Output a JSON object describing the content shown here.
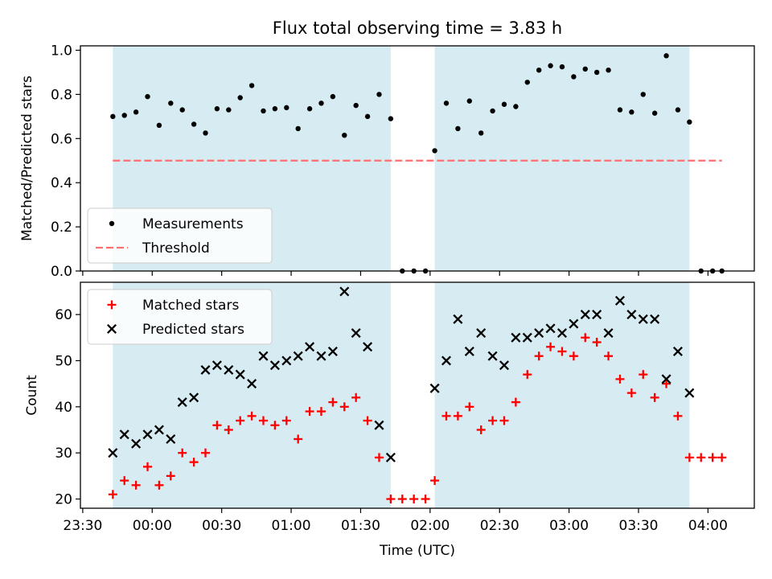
{
  "figure_title": "Flux total observing time = 3.83 h",
  "colors": {
    "shade": "#add8e6",
    "measurement": "#000000",
    "threshold": "#ff6f6f",
    "matched": "#ff0000",
    "predicted": "#000000"
  },
  "chart_data": [
    {
      "type": "scatter",
      "title": "Flux total observing time = 3.83 h",
      "xlabel": "",
      "ylabel": "Matched/Predicted stars",
      "xlim": [
        "23:29",
        "04:20"
      ],
      "ylim": [
        0.0,
        1.02
      ],
      "yticks": [
        "0.0",
        "0.2",
        "0.4",
        "0.6",
        "0.8",
        "1.0"
      ],
      "shaded_intervals": [
        [
          "23:43",
          "01:43"
        ],
        [
          "02:02",
          "03:52"
        ]
      ],
      "legend": {
        "position": "lower-left",
        "entries": [
          "Measurements",
          "Threshold"
        ]
      },
      "threshold": {
        "name": "Threshold",
        "value": 0.5,
        "x_range": [
          "23:43",
          "04:06"
        ]
      },
      "series": [
        {
          "name": "Measurements",
          "marker": "dot",
          "points": [
            [
              "23:43",
              0.7
            ],
            [
              "23:48",
              0.705
            ],
            [
              "23:53",
              0.72
            ],
            [
              "23:58",
              0.79
            ],
            [
              "00:03",
              0.66
            ],
            [
              "00:08",
              0.76
            ],
            [
              "00:13",
              0.73
            ],
            [
              "00:18",
              0.665
            ],
            [
              "00:23",
              0.625
            ],
            [
              "00:28",
              0.735
            ],
            [
              "00:33",
              0.73
            ],
            [
              "00:38",
              0.785
            ],
            [
              "00:43",
              0.84
            ],
            [
              "00:48",
              0.725
            ],
            [
              "00:53",
              0.735
            ],
            [
              "00:58",
              0.74
            ],
            [
              "01:03",
              0.645
            ],
            [
              "01:08",
              0.735
            ],
            [
              "01:13",
              0.76
            ],
            [
              "01:18",
              0.79
            ],
            [
              "01:23",
              0.615
            ],
            [
              "01:28",
              0.75
            ],
            [
              "01:33",
              0.7
            ],
            [
              "01:38",
              0.8
            ],
            [
              "01:43",
              0.69
            ],
            [
              "01:48",
              0.0
            ],
            [
              "01:53",
              0.0
            ],
            [
              "01:58",
              0.0
            ],
            [
              "02:02",
              0.545
            ],
            [
              "02:07",
              0.76
            ],
            [
              "02:12",
              0.645
            ],
            [
              "02:17",
              0.77
            ],
            [
              "02:22",
              0.625
            ],
            [
              "02:27",
              0.725
            ],
            [
              "02:32",
              0.755
            ],
            [
              "02:37",
              0.745
            ],
            [
              "02:42",
              0.855
            ],
            [
              "02:47",
              0.91
            ],
            [
              "02:52",
              0.93
            ],
            [
              "02:57",
              0.925
            ],
            [
              "03:02",
              0.88
            ],
            [
              "03:07",
              0.915
            ],
            [
              "03:12",
              0.9
            ],
            [
              "03:17",
              0.91
            ],
            [
              "03:22",
              0.73
            ],
            [
              "03:27",
              0.72
            ],
            [
              "03:32",
              0.8
            ],
            [
              "03:37",
              0.715
            ],
            [
              "03:42",
              0.975
            ],
            [
              "03:47",
              0.73
            ],
            [
              "03:52",
              0.675
            ],
            [
              "03:57",
              0.0
            ],
            [
              "04:02",
              0.0
            ],
            [
              "04:06",
              0.0
            ]
          ]
        }
      ]
    },
    {
      "type": "scatter",
      "title": "",
      "xlabel": "Time (UTC)",
      "ylabel": "Count",
      "xlim": [
        "23:29",
        "04:20"
      ],
      "ylim": [
        18,
        67
      ],
      "xticks": [
        "23:30",
        "00:00",
        "00:30",
        "01:00",
        "01:30",
        "02:00",
        "02:30",
        "03:00",
        "03:30",
        "04:00"
      ],
      "yticks": [
        "20",
        "30",
        "40",
        "50",
        "60"
      ],
      "shaded_intervals": [
        [
          "23:43",
          "01:43"
        ],
        [
          "02:02",
          "03:52"
        ]
      ],
      "legend": {
        "position": "upper-left",
        "entries": [
          "Matched stars",
          "Predicted stars"
        ]
      },
      "series": [
        {
          "name": "Matched stars",
          "marker": "plus",
          "points": [
            [
              "23:43",
              21
            ],
            [
              "23:48",
              24
            ],
            [
              "23:53",
              23
            ],
            [
              "23:58",
              27
            ],
            [
              "00:03",
              23
            ],
            [
              "00:08",
              25
            ],
            [
              "00:13",
              30
            ],
            [
              "00:18",
              28
            ],
            [
              "00:23",
              30
            ],
            [
              "00:28",
              36
            ],
            [
              "00:33",
              35
            ],
            [
              "00:38",
              37
            ],
            [
              "00:43",
              38
            ],
            [
              "00:48",
              37
            ],
            [
              "00:53",
              36
            ],
            [
              "00:58",
              37
            ],
            [
              "01:03",
              33
            ],
            [
              "01:08",
              39
            ],
            [
              "01:13",
              39
            ],
            [
              "01:18",
              41
            ],
            [
              "01:23",
              40
            ],
            [
              "01:28",
              42
            ],
            [
              "01:33",
              37
            ],
            [
              "01:38",
              29
            ],
            [
              "01:43",
              20
            ],
            [
              "01:48",
              20
            ],
            [
              "01:53",
              20
            ],
            [
              "01:58",
              20
            ],
            [
              "02:02",
              24
            ],
            [
              "02:07",
              38
            ],
            [
              "02:12",
              38
            ],
            [
              "02:17",
              40
            ],
            [
              "02:22",
              35
            ],
            [
              "02:27",
              37
            ],
            [
              "02:32",
              37
            ],
            [
              "02:37",
              41
            ],
            [
              "02:42",
              47
            ],
            [
              "02:47",
              51
            ],
            [
              "02:52",
              53
            ],
            [
              "02:57",
              52
            ],
            [
              "03:02",
              51
            ],
            [
              "03:07",
              55
            ],
            [
              "03:12",
              54
            ],
            [
              "03:17",
              51
            ],
            [
              "03:22",
              46
            ],
            [
              "03:27",
              43
            ],
            [
              "03:32",
              47
            ],
            [
              "03:37",
              42
            ],
            [
              "03:42",
              45
            ],
            [
              "03:47",
              38
            ],
            [
              "03:52",
              29
            ],
            [
              "03:57",
              29
            ],
            [
              "04:02",
              29
            ],
            [
              "04:06",
              29
            ]
          ]
        },
        {
          "name": "Predicted stars",
          "marker": "x",
          "points": [
            [
              "23:43",
              30
            ],
            [
              "23:48",
              34
            ],
            [
              "23:53",
              32
            ],
            [
              "23:58",
              34
            ],
            [
              "00:03",
              35
            ],
            [
              "00:08",
              33
            ],
            [
              "00:13",
              41
            ],
            [
              "00:18",
              42
            ],
            [
              "00:23",
              48
            ],
            [
              "00:28",
              49
            ],
            [
              "00:33",
              48
            ],
            [
              "00:38",
              47
            ],
            [
              "00:43",
              45
            ],
            [
              "00:48",
              51
            ],
            [
              "00:53",
              49
            ],
            [
              "00:58",
              50
            ],
            [
              "01:03",
              51
            ],
            [
              "01:08",
              53
            ],
            [
              "01:13",
              51
            ],
            [
              "01:18",
              52
            ],
            [
              "01:23",
              65
            ],
            [
              "01:28",
              56
            ],
            [
              "01:33",
              53
            ],
            [
              "01:38",
              36
            ],
            [
              "01:43",
              29
            ],
            [
              "02:02",
              44
            ],
            [
              "02:07",
              50
            ],
            [
              "02:12",
              59
            ],
            [
              "02:17",
              52
            ],
            [
              "02:22",
              56
            ],
            [
              "02:27",
              51
            ],
            [
              "02:32",
              49
            ],
            [
              "02:37",
              55
            ],
            [
              "02:42",
              55
            ],
            [
              "02:47",
              56
            ],
            [
              "02:52",
              57
            ],
            [
              "02:57",
              56
            ],
            [
              "03:02",
              58
            ],
            [
              "03:07",
              60
            ],
            [
              "03:12",
              60
            ],
            [
              "03:17",
              56
            ],
            [
              "03:22",
              63
            ],
            [
              "03:27",
              60
            ],
            [
              "03:32",
              59
            ],
            [
              "03:37",
              59
            ],
            [
              "03:42",
              46
            ],
            [
              "03:47",
              52
            ],
            [
              "03:52",
              43
            ]
          ]
        }
      ]
    }
  ]
}
